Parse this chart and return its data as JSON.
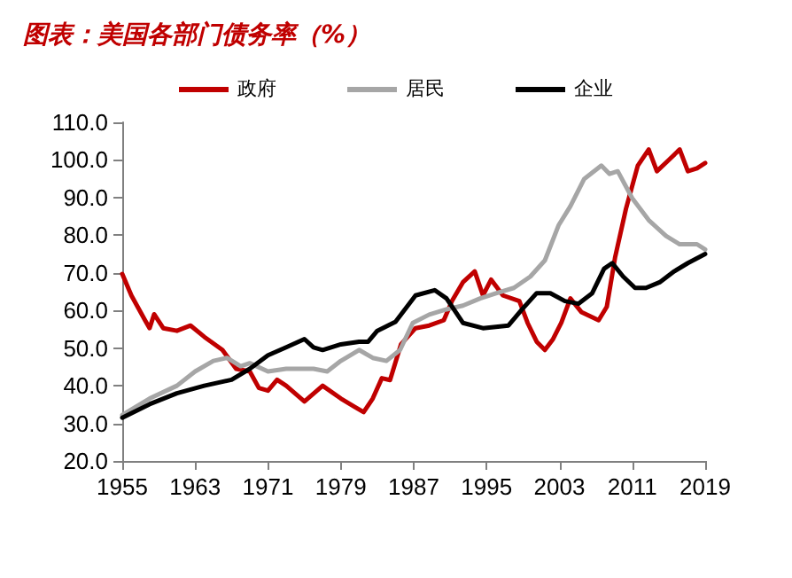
{
  "chart_data": {
    "type": "line",
    "title": "图表：美国各部门债务率（%）",
    "series": [
      {
        "name": "政府",
        "color": "#c00000",
        "x": [
          1955,
          1956,
          1957.5,
          1958,
          1958.5,
          1959.5,
          1961,
          1962.5,
          1964,
          1966,
          1967.5,
          1969,
          1970,
          1971,
          1972,
          1973,
          1975,
          1977,
          1979,
          1980.5,
          1981.5,
          1982.5,
          1983.5,
          1984.4,
          1985.6,
          1987.2,
          1988.7,
          1990.3,
          1991.2,
          1992.4,
          1993.7,
          1994.6,
          1995.5,
          1996.8,
          1998.6,
          1999.5,
          2000.5,
          2001.4,
          2002.3,
          2003.2,
          2004.2,
          2005.4,
          2007.3,
          2008.2,
          2009.1,
          2010.3,
          2011.6,
          2012.8,
          2013.7,
          2015,
          2016.2,
          2017.1,
          2018.1,
          2019
        ],
        "values": [
          69.7,
          64,
          57.4,
          55.3,
          59,
          55.3,
          54.6,
          56,
          53,
          49.5,
          44.5,
          43.8,
          39.4,
          38.7,
          41.6,
          40,
          35.8,
          40,
          36.6,
          34.4,
          33,
          36.6,
          42,
          41.5,
          51,
          55.3,
          56,
          57.4,
          62.5,
          67.5,
          70.4,
          64,
          68.2,
          64,
          62.5,
          56.7,
          51.7,
          49.5,
          52.4,
          56.7,
          63.2,
          59.6,
          57.4,
          61,
          74,
          87,
          98.5,
          102.8,
          97,
          100,
          102.8,
          97,
          97.8,
          99.2
        ]
      },
      {
        "name": "居民",
        "color": "#a6a6a6",
        "x": [
          1955,
          1958,
          1961,
          1963,
          1965,
          1966.5,
          1968,
          1969,
          1971,
          1973,
          1976,
          1977.5,
          1979,
          1981,
          1982.5,
          1984,
          1985.5,
          1986.9,
          1988.7,
          1990.6,
          1992.4,
          1994.3,
          1996.1,
          1998,
          1999.8,
          2001.4,
          2002.9,
          2004.2,
          2005.7,
          2007.6,
          2008.5,
          2009.4,
          2011,
          2012.8,
          2014.7,
          2016.2,
          2018.1,
          2019
        ],
        "values": [
          32.2,
          36.6,
          40,
          43.8,
          46.6,
          47.4,
          45.2,
          46,
          43.8,
          44.5,
          44.5,
          43.8,
          46.6,
          49.5,
          47.4,
          46.6,
          49.5,
          56.7,
          58.9,
          60.3,
          61.3,
          63.2,
          64.6,
          66,
          69,
          73.3,
          82.6,
          87.7,
          94.9,
          98.5,
          96.3,
          97,
          89.8,
          84,
          79.8,
          77.6,
          77.6,
          76.2
        ]
      },
      {
        "name": "企业",
        "color": "#000000",
        "x": [
          1955,
          1958,
          1961,
          1964,
          1967,
          1969,
          1971,
          1973,
          1975,
          1976,
          1977,
          1979,
          1981,
          1982,
          1983,
          1985,
          1987.2,
          1989.3,
          1990.6,
          1992.4,
          1994.6,
          1997.4,
          1998.9,
          2000.5,
          2002,
          2003.6,
          2005.1,
          2006.6,
          2007.9,
          2008.8,
          2010,
          2011.3,
          2012.5,
          2014,
          2015.6,
          2017.1,
          2019
        ],
        "values": [
          31.5,
          35.1,
          38,
          40,
          41.6,
          44.5,
          48.1,
          50.2,
          52.4,
          50.2,
          49.5,
          51,
          51.7,
          51.7,
          54.6,
          57,
          64,
          65.4,
          63.2,
          56.7,
          55.3,
          56,
          60.3,
          64.6,
          64.6,
          62.5,
          61.8,
          64.6,
          71.1,
          72.6,
          69,
          66,
          66,
          67.5,
          70.4,
          72.6,
          75
        ]
      }
    ],
    "xlim": [
      1955,
      2019
    ],
    "xticks": [
      1955,
      1963,
      1971,
      1979,
      1987,
      1995,
      2003,
      2011,
      2019
    ],
    "ylim": [
      20,
      110
    ],
    "yticks": [
      {
        "value": 20,
        "label": "20.0"
      },
      {
        "value": 30,
        "label": "30.0"
      },
      {
        "value": 40,
        "label": "40.0"
      },
      {
        "value": 50,
        "label": "50.0"
      },
      {
        "value": 60,
        "label": "60.0"
      },
      {
        "value": 70,
        "label": "70.0"
      },
      {
        "value": 80,
        "label": "80.0"
      },
      {
        "value": 90,
        "label": "90.0"
      },
      {
        "value": 100,
        "label": "100.0"
      },
      {
        "value": 110,
        "label": "110.0"
      }
    ],
    "grid": false,
    "legend": "top",
    "marker": "none",
    "line_style": "solid"
  }
}
